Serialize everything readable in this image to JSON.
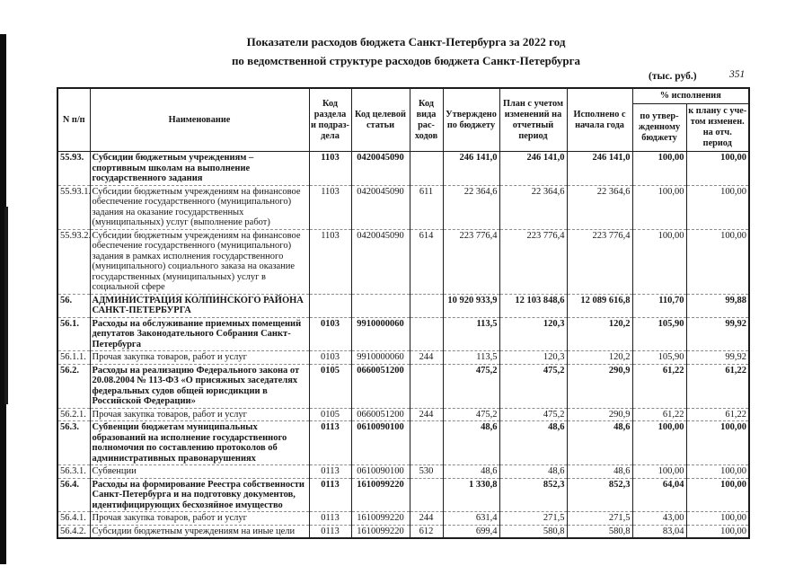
{
  "page": {
    "title_line1": "Показатели расходов бюджета Санкт-Петербурга за 2022 год",
    "title_line2": "по ведомственной структуре расходов бюджета Санкт-Петербурга",
    "units_note": "(тыс. руб.)",
    "page_number": "351"
  },
  "table": {
    "headers": {
      "num": "N п/п",
      "name": "Наименование",
      "rz": "Код раздела и подраз-дела",
      "csr": "Код целевой статьи",
      "vr": "Код вида рас-ходов",
      "approved": "Утверждено по бюджету",
      "plan": "План с учетом изменений на отчетный период",
      "executed": "Исполнено с начала года",
      "pct_group": "% исполнения",
      "pct_budget": "по утвер-жденному бюджету",
      "pct_plan": "к плану с уче-том изменен. на отч. период"
    },
    "rows": [
      {
        "num": "55.93.",
        "bold": true,
        "name": "Субсидии бюджетным учреждениям – спортивным школам на выполнение государственного задания",
        "rz": "1103",
        "csr": "0420045090",
        "vr": "",
        "approved": "246 141,0",
        "plan": "246 141,0",
        "executed": "246 141,0",
        "pct_budget": "100,00",
        "pct_plan": "100,00"
      },
      {
        "num": "55.93.1.",
        "bold": false,
        "name": "Субсидии бюджетным учреждениям на финансовое обеспечение государственного (муниципального) задания на оказание государственных (муниципальных) услуг (выполнение работ)",
        "rz": "1103",
        "csr": "0420045090",
        "vr": "611",
        "approved": "22 364,6",
        "plan": "22 364,6",
        "executed": "22 364,6",
        "pct_budget": "100,00",
        "pct_plan": "100,00"
      },
      {
        "num": "55.93.2.",
        "bold": false,
        "name": "Субсидии бюджетным учреждениям на финансовое обеспечение государственного (муниципального) задания в рамках исполнения государственного (муниципального) социального заказа на оказание государственных (муниципальных) услуг в социальной сфере",
        "rz": "1103",
        "csr": "0420045090",
        "vr": "614",
        "approved": "223 776,4",
        "plan": "223 776,4",
        "executed": "223 776,4",
        "pct_budget": "100,00",
        "pct_plan": "100,00"
      },
      {
        "num": "56.",
        "bold": true,
        "name": "АДМИНИСТРАЦИЯ КОЛПИНСКОГО РАЙОНА САНКТ-ПЕТЕРБУРГА",
        "rz": "",
        "csr": "",
        "vr": "",
        "approved": "10 920 933,9",
        "plan": "12 103 848,6",
        "executed": "12 089 616,8",
        "pct_budget": "110,70",
        "pct_plan": "99,88"
      },
      {
        "num": "56.1.",
        "bold": true,
        "name": "Расходы на обслуживание приемных помещений депутатов Законодательного Собрания Санкт-Петербурга",
        "rz": "0103",
        "csr": "9910000060",
        "vr": "",
        "approved": "113,5",
        "plan": "120,3",
        "executed": "120,2",
        "pct_budget": "105,90",
        "pct_plan": "99,92"
      },
      {
        "num": "56.1.1.",
        "bold": false,
        "name": "Прочая закупка товаров, работ и услуг",
        "rz": "0103",
        "csr": "9910000060",
        "vr": "244",
        "approved": "113,5",
        "plan": "120,3",
        "executed": "120,2",
        "pct_budget": "105,90",
        "pct_plan": "99,92"
      },
      {
        "num": "56.2.",
        "bold": true,
        "name": "Расходы на реализацию Федерального закона от 20.08.2004 № 113-ФЗ «О присяжных заседателях федеральных судов общей юрисдикции в Российской Федерации»",
        "rz": "0105",
        "csr": "0660051200",
        "vr": "",
        "approved": "475,2",
        "plan": "475,2",
        "executed": "290,9",
        "pct_budget": "61,22",
        "pct_plan": "61,22"
      },
      {
        "num": "56.2.1.",
        "bold": false,
        "name": "Прочая закупка товаров, работ и услуг",
        "rz": "0105",
        "csr": "0660051200",
        "vr": "244",
        "approved": "475,2",
        "plan": "475,2",
        "executed": "290,9",
        "pct_budget": "61,22",
        "pct_plan": "61,22"
      },
      {
        "num": "56.3.",
        "bold": true,
        "name": "Субвенции бюджетам муниципальных образований на исполнение государственного полномочия по составлению протоколов об административных правонарушениях",
        "rz": "0113",
        "csr": "0610090100",
        "vr": "",
        "approved": "48,6",
        "plan": "48,6",
        "executed": "48,6",
        "pct_budget": "100,00",
        "pct_plan": "100,00"
      },
      {
        "num": "56.3.1.",
        "bold": false,
        "name": "Субвенции",
        "rz": "0113",
        "csr": "0610090100",
        "vr": "530",
        "approved": "48,6",
        "plan": "48,6",
        "executed": "48,6",
        "pct_budget": "100,00",
        "pct_plan": "100,00"
      },
      {
        "num": "56.4.",
        "bold": true,
        "name": "Расходы на формирование Реестра собственности Санкт-Петербурга и на подготовку документов, идентифицирующих бесхозяйное имущество",
        "rz": "0113",
        "csr": "1610099220",
        "vr": "",
        "approved": "1 330,8",
        "plan": "852,3",
        "executed": "852,3",
        "pct_budget": "64,04",
        "pct_plan": "100,00"
      },
      {
        "num": "56.4.1.",
        "bold": false,
        "name": "Прочая закупка товаров, работ и услуг",
        "rz": "0113",
        "csr": "1610099220",
        "vr": "244",
        "approved": "631,4",
        "plan": "271,5",
        "executed": "271,5",
        "pct_budget": "43,00",
        "pct_plan": "100,00"
      },
      {
        "num": "56.4.2.",
        "bold": false,
        "name": "Субсидии бюджетным учреждениям на иные цели",
        "rz": "0113",
        "csr": "1610099220",
        "vr": "612",
        "approved": "699,4",
        "plan": "580,8",
        "executed": "580,8",
        "pct_budget": "83,04",
        "pct_plan": "100,00"
      }
    ]
  }
}
